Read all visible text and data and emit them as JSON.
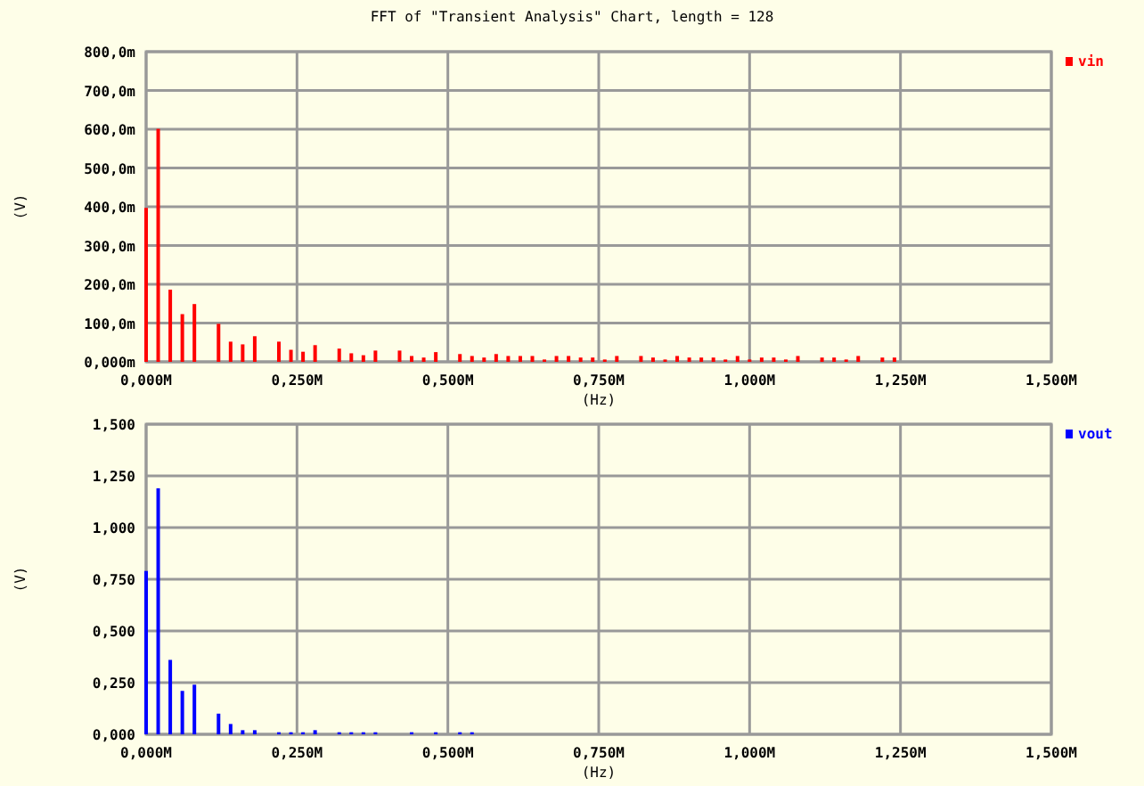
{
  "chart_data": [
    {
      "type": "bar",
      "title": "FFT of \"Transient Analysis\" Chart, length = 128",
      "xlabel": "(Hz)",
      "ylabel": "(V)",
      "grid": true,
      "legend": "top right",
      "xlim": [
        0,
        1.5
      ],
      "xticks": [
        {
          "value": 0,
          "label": "0,000M"
        },
        {
          "value": 0.25,
          "label": "0,250M"
        },
        {
          "value": 0.5,
          "label": "0,500M"
        },
        {
          "value": 0.75,
          "label": "0,750M"
        },
        {
          "value": 1,
          "label": "1,000M"
        },
        {
          "value": 1.25,
          "label": "1,250M"
        },
        {
          "value": 1.5,
          "label": "1,500M"
        }
      ],
      "ylim": [
        0,
        800
      ],
      "yticks": [
        {
          "value": 0,
          "label": "0,000m"
        },
        {
          "value": 100,
          "label": "100,0m"
        },
        {
          "value": 200,
          "label": "200,0m"
        },
        {
          "value": 300,
          "label": "300,0m"
        },
        {
          "value": 400,
          "label": "400,0m"
        },
        {
          "value": 500,
          "label": "500,0m"
        },
        {
          "value": 600,
          "label": "600,0m"
        },
        {
          "value": 700,
          "label": "700,0m"
        },
        {
          "value": 800,
          "label": "800,0m"
        }
      ],
      "series": [
        {
          "name": "vin",
          "color": "#ff0000",
          "x": [
            0,
            0.02,
            0.04,
            0.06,
            0.08,
            0.12,
            0.14,
            0.16,
            0.18,
            0.22,
            0.24,
            0.26,
            0.28,
            0.32,
            0.34,
            0.36,
            0.38,
            0.42,
            0.44,
            0.46,
            0.48,
            0.52,
            0.54,
            0.56,
            0.58,
            0.6,
            0.62,
            0.64,
            0.66,
            0.68,
            0.7,
            0.72,
            0.74,
            0.76,
            0.78,
            0.82,
            0.84,
            0.86,
            0.88,
            0.9,
            0.92,
            0.94,
            0.96,
            0.98,
            1,
            1.02,
            1.04,
            1.06,
            1.08,
            1.12,
            1.14,
            1.16,
            1.18,
            1.22,
            1.24
          ],
          "values": [
            397,
            601,
            186,
            123,
            149,
            98,
            52,
            45,
            66,
            52,
            31,
            26,
            43,
            34,
            22,
            17,
            29,
            29,
            15,
            11,
            25,
            20,
            15,
            11,
            20,
            15,
            15,
            15,
            6,
            15,
            15,
            11,
            11,
            6,
            15,
            15,
            11,
            6,
            15,
            11,
            11,
            11,
            6,
            15,
            6,
            11,
            11,
            6,
            15,
            11,
            11,
            6,
            15,
            11,
            11
          ]
        }
      ]
    },
    {
      "type": "bar",
      "xlabel": "(Hz)",
      "ylabel": "(V)",
      "grid": true,
      "legend": "top right",
      "xlim": [
        0,
        1.5
      ],
      "xticks": [
        {
          "value": 0,
          "label": "0,000M"
        },
        {
          "value": 0.25,
          "label": "0,250M"
        },
        {
          "value": 0.5,
          "label": "0,500M"
        },
        {
          "value": 0.75,
          "label": "0,750M"
        },
        {
          "value": 1,
          "label": "1,000M"
        },
        {
          "value": 1.25,
          "label": "1,250M"
        },
        {
          "value": 1.5,
          "label": "1,500M"
        }
      ],
      "ylim": [
        0,
        1.5
      ],
      "yticks": [
        {
          "value": 0,
          "label": "0,000"
        },
        {
          "value": 0.25,
          "label": "0,250"
        },
        {
          "value": 0.5,
          "label": "0,500"
        },
        {
          "value": 0.75,
          "label": "0,750"
        },
        {
          "value": 1,
          "label": "1,000"
        },
        {
          "value": 1.25,
          "label": "1,250"
        },
        {
          "value": 1.5,
          "label": "1,500"
        }
      ],
      "series": [
        {
          "name": "vout",
          "color": "#0000ff",
          "x": [
            0,
            0.02,
            0.04,
            0.06,
            0.08,
            0.12,
            0.14,
            0.16,
            0.18,
            0.22,
            0.24,
            0.26,
            0.28,
            0.32,
            0.34,
            0.36,
            0.38,
            0.44,
            0.48,
            0.52,
            0.54
          ],
          "values": [
            0.79,
            1.19,
            0.36,
            0.21,
            0.24,
            0.1,
            0.05,
            0.02,
            0.02,
            0.01,
            0.01,
            0.01,
            0.02,
            0.01,
            0.01,
            0.01,
            0.01,
            0.01,
            0.01,
            0.01,
            0.01
          ]
        }
      ]
    }
  ]
}
